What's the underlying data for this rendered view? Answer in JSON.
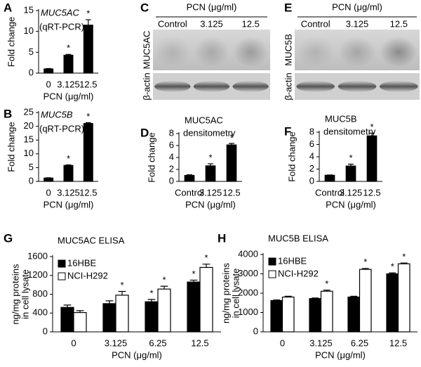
{
  "chart_data": [
    {
      "panel": "A",
      "type": "bar",
      "title": "MUC5AC",
      "subtitle": "(qRT-PCR)",
      "xlabel": "PCN (μg/ml)",
      "ylabel": [
        "Fold change"
      ],
      "categories": [
        "0",
        "3.125",
        "12.5"
      ],
      "ylim": [
        0,
        15
      ],
      "yticks": [
        0,
        5,
        10,
        15
      ],
      "series": [
        {
          "color": "#000000",
          "values": [
            1,
            4.3,
            11.5
          ],
          "errors": [
            0.1,
            0.2,
            1.3
          ],
          "stars": [
            null,
            "*",
            "*"
          ]
        }
      ]
    },
    {
      "panel": "B",
      "type": "bar",
      "title": "MUC5B",
      "subtitle": "(qRT-PCR)",
      "xlabel": "PCN (μg/ml)",
      "ylabel": [
        "Fold change"
      ],
      "categories": [
        "0",
        "3.125",
        "12.5"
      ],
      "ylim": [
        0,
        25
      ],
      "yticks": [
        0,
        5,
        10,
        15,
        20,
        25
      ],
      "series": [
        {
          "color": "#000000",
          "values": [
            1.2,
            5.8,
            21
          ],
          "errors": [
            0.1,
            0.2,
            0.3
          ],
          "stars": [
            null,
            "*",
            "*"
          ]
        }
      ]
    },
    {
      "panel": "D",
      "type": "bar",
      "title": "MUC5AC",
      "subtitle": "densitometry",
      "xlabel": "PCN (μg/ml)",
      "ylabel": [
        "Fold change"
      ],
      "categories": [
        "Control",
        "3.125",
        "12.5"
      ],
      "ylim": [
        0,
        8
      ],
      "yticks": [
        0,
        2,
        4,
        6,
        8
      ],
      "series": [
        {
          "color": "#000000",
          "values": [
            1,
            2.6,
            6.1
          ],
          "errors": [
            0.1,
            0.35,
            0.25
          ],
          "stars": [
            null,
            "*",
            "*"
          ]
        }
      ]
    },
    {
      "panel": "F",
      "type": "bar",
      "title": "MUC5B",
      "subtitle": "densitometry",
      "xlabel": "PCN (μg/ml)",
      "ylabel": [
        "Fold change"
      ],
      "categories": [
        "Control",
        "3.125",
        "12.5"
      ],
      "ylim": [
        0,
        8
      ],
      "yticks": [
        0,
        2,
        4,
        6,
        8
      ],
      "series": [
        {
          "color": "#000000",
          "values": [
            1,
            2.5,
            7.4
          ],
          "errors": [
            0.05,
            0.3,
            0.45
          ],
          "stars": [
            null,
            "*",
            "*"
          ]
        }
      ]
    },
    {
      "panel": "G",
      "type": "bar",
      "title": "MUC5AC ELISA",
      "xlabel": "PCN (μg/ml)",
      "ylabel": [
        "ng/mg proteins",
        "in cell lysate"
      ],
      "categories": [
        "0",
        "3.125",
        "6.25",
        "12.5"
      ],
      "ylim": [
        0,
        1600
      ],
      "yticks": [
        0,
        400,
        800,
        1200,
        1600
      ],
      "series": [
        {
          "name": "16HBE",
          "color": "#000000",
          "values": [
            520,
            600,
            640,
            1060
          ],
          "errors": [
            50,
            60,
            50,
            40
          ],
          "stars": [
            null,
            null,
            "*",
            "*"
          ]
        },
        {
          "name": "NCI-H292",
          "color": "#ffffff",
          "values": [
            410,
            780,
            910,
            1370
          ],
          "errors": [
            40,
            80,
            60,
            70
          ],
          "stars": [
            null,
            "*",
            "*",
            "*"
          ]
        }
      ]
    },
    {
      "panel": "H",
      "type": "bar",
      "title": "MUC5B ELISA",
      "xlabel": "PCN (μg/ml)",
      "ylabel": [
        "ng/mg proteins",
        "in cell lysate"
      ],
      "categories": [
        "0",
        "3.125",
        "6.25",
        "12.5"
      ],
      "ylim": [
        0,
        4000
      ],
      "yticks": [
        0,
        1000,
        2000,
        3000,
        4000
      ],
      "series": [
        {
          "name": "16HBE",
          "color": "#000000",
          "values": [
            1620,
            1720,
            1800,
            3000
          ],
          "errors": [
            30,
            30,
            40,
            50
          ],
          "stars": [
            null,
            null,
            null,
            "*"
          ]
        },
        {
          "name": "NCI-H292",
          "color": "#ffffff",
          "values": [
            1800,
            2100,
            3230,
            3520
          ],
          "errors": [
            40,
            60,
            50,
            40
          ],
          "stars": [
            null,
            "*",
            "*",
            "*"
          ]
        }
      ]
    }
  ],
  "blots": [
    {
      "panel": "C",
      "title": "PCN (μg/ml)",
      "lanes": [
        "Control",
        "3.125",
        "12.5"
      ],
      "rows": [
        "MUC5AC",
        "β-actin"
      ]
    },
    {
      "panel": "E",
      "title": "PCN (μg/ml)",
      "lanes": [
        "Control",
        "3.125",
        "12.5"
      ],
      "rows": [
        "MUC5B",
        "β-actin"
      ]
    }
  ]
}
